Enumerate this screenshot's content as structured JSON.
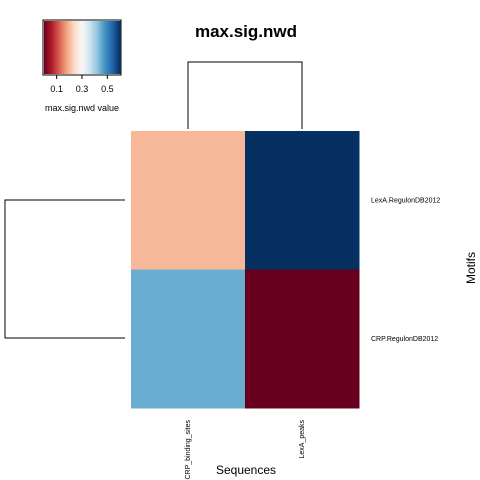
{
  "chart_data": {
    "type": "heatmap",
    "title": "max.sig.nwd",
    "xlabel": "Sequences",
    "ylabel": "Motifs",
    "columns": [
      "CRP_binding_sites",
      "LexA_peaks"
    ],
    "rows": [
      "LexA.RegulonDB2012",
      "CRP.RegulonDB2012"
    ],
    "values": [
      [
        0.2,
        0.6
      ],
      [
        0.45,
        0.0
      ]
    ],
    "colorbar": {
      "label": "max.sig.nwd value",
      "ticks": [
        "0.1",
        "0.3",
        "0.5"
      ],
      "range": [
        0.0,
        0.6
      ],
      "palette": [
        "#67001F",
        "#B2182B",
        "#D6604D",
        "#F4A582",
        "#FDDBC7",
        "#F7F7F7",
        "#D1E5F0",
        "#92C5DE",
        "#4393C3",
        "#2166AC",
        "#053061"
      ]
    },
    "row_dendrogram": true,
    "column_dendrogram": true
  }
}
